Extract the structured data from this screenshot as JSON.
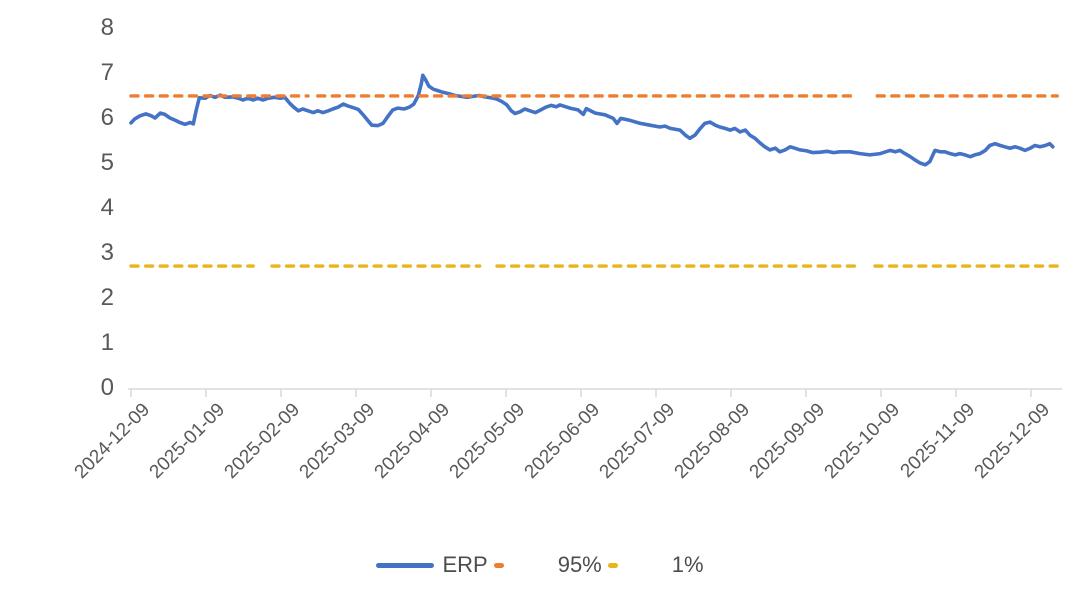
{
  "chart_data": {
    "type": "line",
    "title": "",
    "xlabel": "",
    "ylabel": "",
    "grid": false,
    "background": "#FFFFFF",
    "axis_color": "#D9D9D9",
    "text_color": "#595959",
    "x_axis": {
      "kind": "date",
      "tick_labels": [
        "2024-12-09",
        "2025-01-09",
        "2025-02-09",
        "2025-03-09",
        "2025-04-09",
        "2025-05-09",
        "2025-06-09",
        "2025-07-09",
        "2025-08-09",
        "2025-09-09",
        "2025-10-09",
        "2025-11-09",
        "2025-12-09"
      ],
      "rotation_deg": -45,
      "range_months": [
        0,
        12.35
      ]
    },
    "y_axis": {
      "tick_labels": [
        "0",
        "1",
        "2",
        "3",
        "4",
        "5",
        "6",
        "7",
        "8"
      ],
      "min": 0,
      "max": 8,
      "step": 1
    },
    "legend": {
      "position": "bottom",
      "entries": [
        "ERP",
        "95%",
        "1%"
      ]
    },
    "series": [
      {
        "name": "ERP",
        "type": "line",
        "color": "#4472C4",
        "points": [
          [
            0.0,
            5.89
          ],
          [
            0.05,
            5.98
          ],
          [
            0.12,
            6.05
          ],
          [
            0.2,
            6.09
          ],
          [
            0.27,
            6.05
          ],
          [
            0.32,
            6.0
          ],
          [
            0.39,
            6.11
          ],
          [
            0.45,
            6.08
          ],
          [
            0.52,
            6.0
          ],
          [
            0.59,
            5.95
          ],
          [
            0.65,
            5.9
          ],
          [
            0.72,
            5.86
          ],
          [
            0.79,
            5.9
          ],
          [
            0.83,
            5.87
          ],
          [
            0.87,
            6.18
          ],
          [
            0.91,
            6.45
          ],
          [
            0.99,
            6.44
          ],
          [
            1.05,
            6.5
          ],
          [
            1.12,
            6.46
          ],
          [
            1.19,
            6.51
          ],
          [
            1.25,
            6.46
          ],
          [
            1.35,
            6.47
          ],
          [
            1.43,
            6.44
          ],
          [
            1.49,
            6.4
          ],
          [
            1.56,
            6.44
          ],
          [
            1.63,
            6.4
          ],
          [
            1.69,
            6.44
          ],
          [
            1.76,
            6.4
          ],
          [
            1.83,
            6.44
          ],
          [
            1.91,
            6.46
          ],
          [
            1.99,
            6.44
          ],
          [
            2.05,
            6.46
          ],
          [
            2.12,
            6.32
          ],
          [
            2.17,
            6.24
          ],
          [
            2.23,
            6.16
          ],
          [
            2.29,
            6.2
          ],
          [
            2.36,
            6.16
          ],
          [
            2.43,
            6.12
          ],
          [
            2.49,
            6.16
          ],
          [
            2.56,
            6.12
          ],
          [
            2.63,
            6.16
          ],
          [
            2.69,
            6.2
          ],
          [
            2.76,
            6.24
          ],
          [
            2.83,
            6.31
          ],
          [
            2.89,
            6.27
          ],
          [
            2.96,
            6.23
          ],
          [
            3.03,
            6.19
          ],
          [
            3.09,
            6.08
          ],
          [
            3.16,
            5.94
          ],
          [
            3.21,
            5.84
          ],
          [
            3.29,
            5.83
          ],
          [
            3.36,
            5.88
          ],
          [
            3.43,
            6.05
          ],
          [
            3.49,
            6.18
          ],
          [
            3.56,
            6.22
          ],
          [
            3.64,
            6.2
          ],
          [
            3.71,
            6.24
          ],
          [
            3.77,
            6.31
          ],
          [
            3.83,
            6.5
          ],
          [
            3.87,
            6.76
          ],
          [
            3.89,
            6.95
          ],
          [
            3.93,
            6.84
          ],
          [
            3.97,
            6.71
          ],
          [
            4.03,
            6.64
          ],
          [
            4.09,
            6.61
          ],
          [
            4.16,
            6.57
          ],
          [
            4.24,
            6.54
          ],
          [
            4.32,
            6.5
          ],
          [
            4.4,
            6.48
          ],
          [
            4.48,
            6.46
          ],
          [
            4.56,
            6.48
          ],
          [
            4.64,
            6.5
          ],
          [
            4.72,
            6.47
          ],
          [
            4.8,
            6.45
          ],
          [
            4.88,
            6.42
          ],
          [
            4.95,
            6.36
          ],
          [
            5.01,
            6.29
          ],
          [
            5.07,
            6.16
          ],
          [
            5.12,
            6.1
          ],
          [
            5.19,
            6.14
          ],
          [
            5.25,
            6.2
          ],
          [
            5.32,
            6.16
          ],
          [
            5.39,
            6.12
          ],
          [
            5.45,
            6.17
          ],
          [
            5.53,
            6.24
          ],
          [
            5.6,
            6.28
          ],
          [
            5.67,
            6.25
          ],
          [
            5.72,
            6.29
          ],
          [
            5.85,
            6.22
          ],
          [
            5.96,
            6.18
          ],
          [
            6.03,
            6.08
          ],
          [
            6.07,
            6.21
          ],
          [
            6.19,
            6.11
          ],
          [
            6.32,
            6.07
          ],
          [
            6.43,
            5.99
          ],
          [
            6.48,
            5.88
          ],
          [
            6.53,
            5.99
          ],
          [
            6.65,
            5.95
          ],
          [
            6.79,
            5.88
          ],
          [
            6.92,
            5.84
          ],
          [
            7.05,
            5.8
          ],
          [
            7.12,
            5.82
          ],
          [
            7.19,
            5.77
          ],
          [
            7.32,
            5.73
          ],
          [
            7.39,
            5.62
          ],
          [
            7.45,
            5.55
          ],
          [
            7.52,
            5.62
          ],
          [
            7.59,
            5.77
          ],
          [
            7.65,
            5.88
          ],
          [
            7.72,
            5.91
          ],
          [
            7.79,
            5.84
          ],
          [
            7.85,
            5.8
          ],
          [
            7.92,
            5.77
          ],
          [
            7.99,
            5.73
          ],
          [
            8.05,
            5.77
          ],
          [
            8.12,
            5.69
          ],
          [
            8.19,
            5.73
          ],
          [
            8.25,
            5.62
          ],
          [
            8.32,
            5.55
          ],
          [
            8.39,
            5.44
          ],
          [
            8.45,
            5.36
          ],
          [
            8.52,
            5.29
          ],
          [
            8.59,
            5.33
          ],
          [
            8.65,
            5.25
          ],
          [
            8.72,
            5.29
          ],
          [
            8.79,
            5.36
          ],
          [
            8.85,
            5.33
          ],
          [
            8.92,
            5.29
          ],
          [
            9.01,
            5.27
          ],
          [
            9.09,
            5.23
          ],
          [
            9.19,
            5.24
          ],
          [
            9.28,
            5.26
          ],
          [
            9.37,
            5.23
          ],
          [
            9.45,
            5.25
          ],
          [
            9.59,
            5.25
          ],
          [
            9.72,
            5.21
          ],
          [
            9.85,
            5.18
          ],
          [
            9.99,
            5.21
          ],
          [
            10.12,
            5.28
          ],
          [
            10.19,
            5.25
          ],
          [
            10.25,
            5.28
          ],
          [
            10.32,
            5.21
          ],
          [
            10.39,
            5.14
          ],
          [
            10.45,
            5.07
          ],
          [
            10.52,
            5.0
          ],
          [
            10.59,
            4.96
          ],
          [
            10.65,
            5.03
          ],
          [
            10.72,
            5.28
          ],
          [
            10.79,
            5.25
          ],
          [
            10.85,
            5.25
          ],
          [
            10.92,
            5.21
          ],
          [
            10.99,
            5.18
          ],
          [
            11.05,
            5.21
          ],
          [
            11.12,
            5.18
          ],
          [
            11.19,
            5.14
          ],
          [
            11.25,
            5.18
          ],
          [
            11.32,
            5.21
          ],
          [
            11.39,
            5.28
          ],
          [
            11.45,
            5.39
          ],
          [
            11.52,
            5.43
          ],
          [
            11.59,
            5.39
          ],
          [
            11.65,
            5.36
          ],
          [
            11.72,
            5.33
          ],
          [
            11.79,
            5.36
          ],
          [
            11.85,
            5.33
          ],
          [
            11.92,
            5.28
          ],
          [
            11.99,
            5.33
          ],
          [
            12.05,
            5.39
          ],
          [
            12.12,
            5.36
          ],
          [
            12.19,
            5.39
          ],
          [
            12.25,
            5.43
          ],
          [
            12.29,
            5.36
          ]
        ]
      },
      {
        "name": "95%",
        "type": "dashed-hline",
        "color": "#ED7D31",
        "value": 6.49,
        "segments": [
          [
            0.0,
            2.36
          ],
          [
            2.49,
            9.68
          ],
          [
            9.95,
            12.35
          ]
        ]
      },
      {
        "name": "1%",
        "type": "dashed-hline",
        "color": "#E9B51F",
        "value": 2.71,
        "segments": [
          [
            0.0,
            1.63
          ],
          [
            1.88,
            4.65
          ],
          [
            4.88,
            9.65
          ],
          [
            9.92,
            12.35
          ]
        ]
      }
    ]
  }
}
